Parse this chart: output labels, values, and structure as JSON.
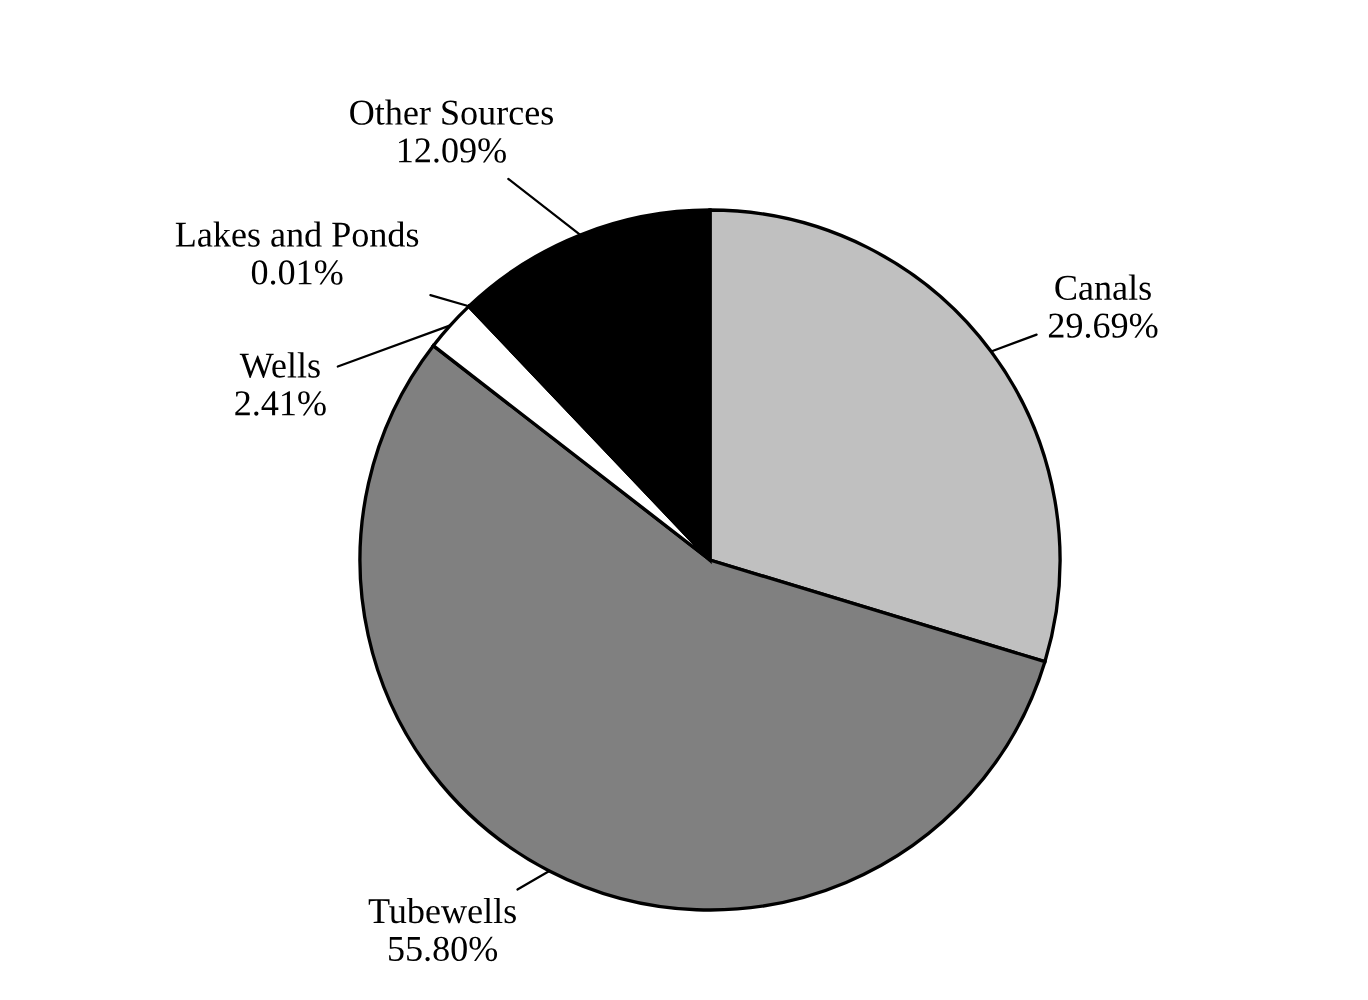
{
  "chart_data": {
    "type": "pie",
    "categories": [
      "Canals",
      "Tubewells",
      "Wells",
      "Lakes and Ponds",
      "Other Sources"
    ],
    "values": [
      29.69,
      55.8,
      2.41,
      0.01,
      12.09
    ],
    "colors": [
      "#c0c0c0",
      "#808080",
      "#ffffff",
      "#ffffff",
      "#000000"
    ],
    "value_labels": [
      "29.69%",
      "55.80%",
      "2.41%",
      "0.01%",
      "12.09%"
    ],
    "legend": false
  }
}
